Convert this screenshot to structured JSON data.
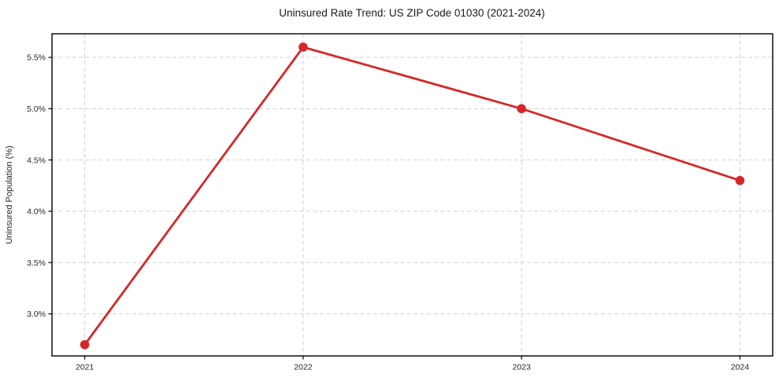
{
  "chart_data": {
    "type": "line",
    "title": "Uninsured Rate Trend: US ZIP Code 01030 (2021-2024)",
    "xlabel": "",
    "ylabel": "Uninsured Population (%)",
    "x": [
      2021,
      2022,
      2023,
      2024
    ],
    "series": [
      {
        "name": "Uninsured rate",
        "values": [
          2.7,
          5.6,
          5.0,
          4.3
        ]
      }
    ],
    "x_tick_labels": [
      "2021",
      "2022",
      "2023",
      "2024"
    ],
    "y_ticks": [
      3.0,
      3.5,
      4.0,
      4.5,
      5.0,
      5.5
    ],
    "y_tick_labels": [
      "3.0%",
      "3.5%",
      "4.0%",
      "4.5%",
      "5.0%",
      "5.5%"
    ],
    "xlim": [
      2020.85,
      2024.15
    ],
    "ylim": [
      2.59,
      5.73
    ],
    "grid": true,
    "grid_style": "dashed",
    "legend_position": "none",
    "colors": {
      "line": "#d62728",
      "marker": "#d62728",
      "grid": "#d0d0d0",
      "axis": "#000000",
      "text": "#262626"
    }
  }
}
